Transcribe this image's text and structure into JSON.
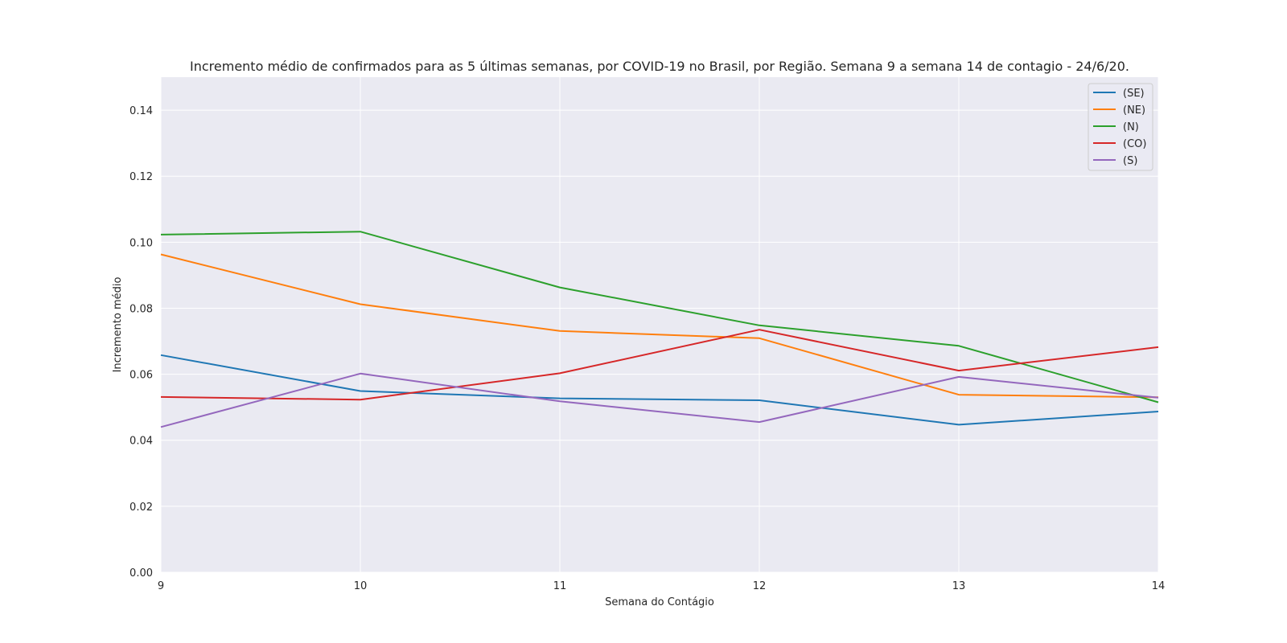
{
  "chart_data": {
    "type": "line",
    "title": "Incremento médio de confirmados para as 5 últimas semanas, por COVID-19 no Brasil, por Região. Semana 9 a semana 14 de contagio - 24/6/20.",
    "xlabel": "Semana do Contágio",
    "ylabel": "Incremento médio",
    "x": [
      9,
      10,
      11,
      12,
      13,
      14
    ],
    "xlim": [
      9,
      14
    ],
    "ylim": [
      0,
      0.15
    ],
    "xticks": [
      "9",
      "10",
      "11",
      "12",
      "13",
      "14"
    ],
    "yticks": [
      "0.00",
      "0.02",
      "0.04",
      "0.06",
      "0.08",
      "0.10",
      "0.12",
      "0.14"
    ],
    "ytick_values": [
      0,
      0.02,
      0.04,
      0.06,
      0.08,
      0.1,
      0.12,
      0.14
    ],
    "grid": true,
    "legend_position": "top-right",
    "series": [
      {
        "name": "(SE)",
        "color": "#1f77b4",
        "values": [
          0.0658,
          0.0549,
          0.0527,
          0.0521,
          0.0447,
          0.0487
        ]
      },
      {
        "name": "(NE)",
        "color": "#ff7f0e",
        "values": [
          0.0963,
          0.0812,
          0.0731,
          0.0709,
          0.0538,
          0.053
        ]
      },
      {
        "name": "(N)",
        "color": "#2ca02c",
        "values": [
          0.1023,
          0.1032,
          0.0863,
          0.0748,
          0.0686,
          0.0515
        ]
      },
      {
        "name": "(CO)",
        "color": "#d62728",
        "values": [
          0.0531,
          0.0523,
          0.0603,
          0.0735,
          0.0611,
          0.0682
        ]
      },
      {
        "name": "(S)",
        "color": "#9467bd",
        "values": [
          0.044,
          0.0602,
          0.0518,
          0.0455,
          0.0592,
          0.0529
        ]
      }
    ]
  }
}
